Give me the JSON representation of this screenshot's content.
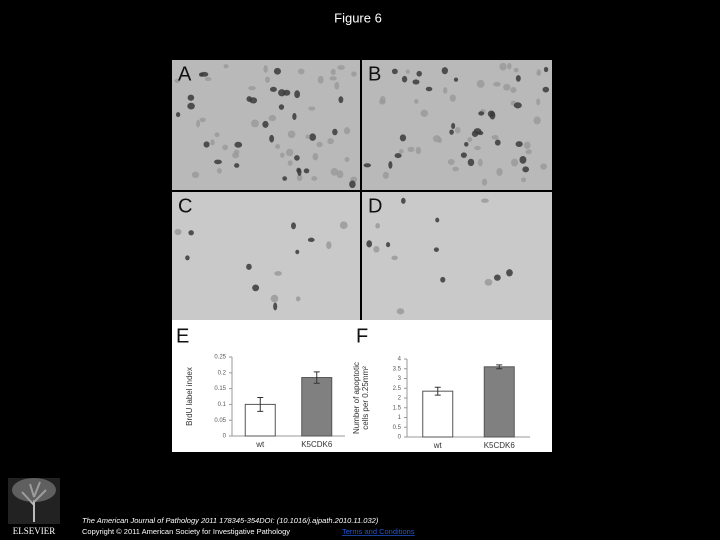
{
  "title": "Figure 6",
  "panels": [
    "A",
    "B",
    "C",
    "D"
  ],
  "chart_data": [
    {
      "type": "bar",
      "panel_label": "E",
      "ylabel": [
        "BrdU label index"
      ],
      "categories": [
        "wt",
        "K5CDK6"
      ],
      "values": [
        0.1,
        0.185
      ],
      "errors": [
        0.022,
        0.018
      ],
      "colors": [
        "#ffffff",
        "#808080"
      ],
      "ylim": [
        0,
        0.25
      ],
      "yticks": [
        0,
        0.05,
        0.1,
        0.15,
        0.2,
        0.25
      ]
    },
    {
      "type": "bar",
      "panel_label": "F",
      "ylabel": [
        "Number of apoptotic",
        "cells per 0.25mm²"
      ],
      "categories": [
        "wt",
        "K5CDK6"
      ],
      "values": [
        2.35,
        3.6
      ],
      "errors": [
        0.2,
        0.1
      ],
      "colors": [
        "#ffffff",
        "#808080"
      ],
      "ylim": [
        0,
        4
      ],
      "yticks": [
        0,
        0.5,
        1,
        1.5,
        2,
        2.5,
        3,
        3.5,
        4
      ]
    }
  ],
  "footer": {
    "citation": "The American Journal of Pathology 2011 178345-354DOI: (10.1016/j.ajpath.2010.11.032)",
    "copyright": "Copyright © 2011 American Society for Investigative Pathology",
    "link": "Terms and Conditions",
    "publisher": "ELSEVIER"
  }
}
